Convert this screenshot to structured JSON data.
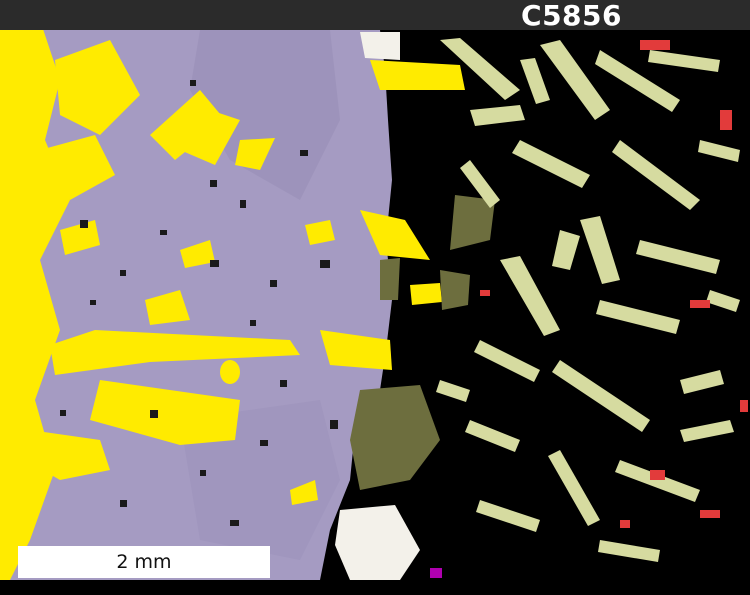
{
  "sample": {
    "label": "C5856"
  },
  "scale_bar": {
    "label": "2 mm"
  },
  "colors": {
    "background": "#000000",
    "band": "#2b2b2b",
    "lavender_phase": "#a59bc2",
    "yellow_phase": "#ffeb00",
    "olive_phase": "#6d6e3e",
    "pale_green_phase": "#d6dba0",
    "red_phase": "#e23b3b",
    "white_phase": "#f3f1ea"
  }
}
